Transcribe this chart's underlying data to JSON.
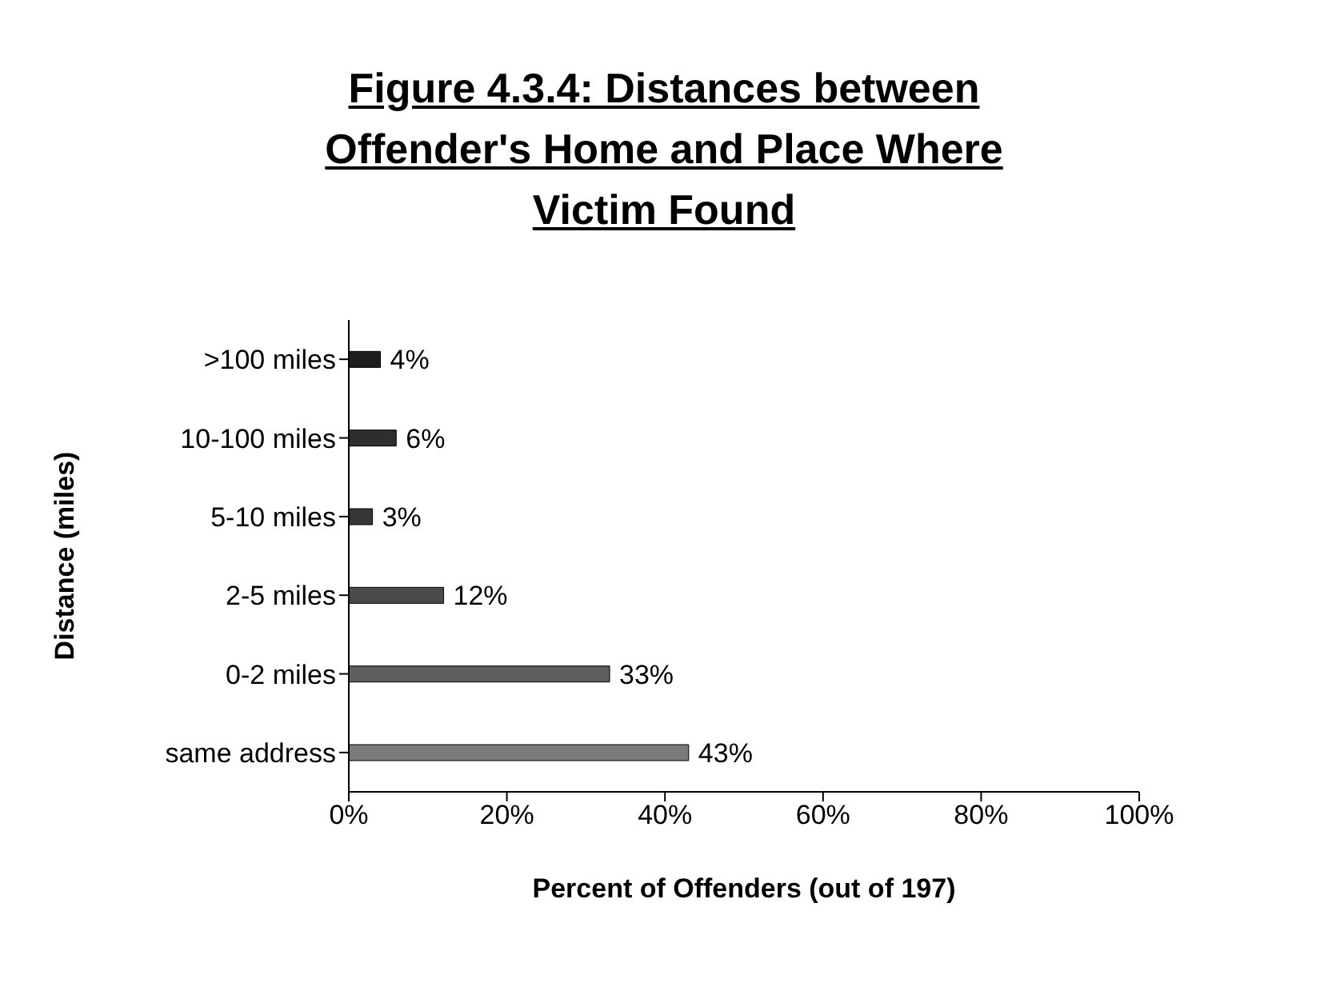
{
  "chart_data": {
    "type": "bar",
    "orientation": "horizontal",
    "title": "Figure 4.3.4: Distances between Offender's Home and Place Where Victim Found",
    "xlabel": "Percent of Offenders (out of 197)",
    "ylabel": "Distance (miles)",
    "categories": [
      ">100 miles",
      "10-100 miles",
      "5-10 miles",
      "2-5 miles",
      "0-2 miles",
      "same address"
    ],
    "values": [
      4,
      6,
      3,
      12,
      33,
      43
    ],
    "colors": [
      "#1e1e1e",
      "#2e2e2e",
      "#363636",
      "#4a4a4a",
      "#5e5e5e",
      "#7a7a7a"
    ],
    "value_labels": [
      "4%",
      "6%",
      "3%",
      "12%",
      "33%",
      "43%"
    ],
    "xlim": [
      0,
      100
    ],
    "xticks": [
      {
        "value": 0,
        "label": "0%"
      },
      {
        "value": 20,
        "label": "20%"
      },
      {
        "value": 40,
        "label": "40%"
      },
      {
        "value": 60,
        "label": "60%"
      },
      {
        "value": 80,
        "label": "80%"
      },
      {
        "value": 100,
        "label": "100%"
      }
    ],
    "grid": false,
    "legend": false
  }
}
